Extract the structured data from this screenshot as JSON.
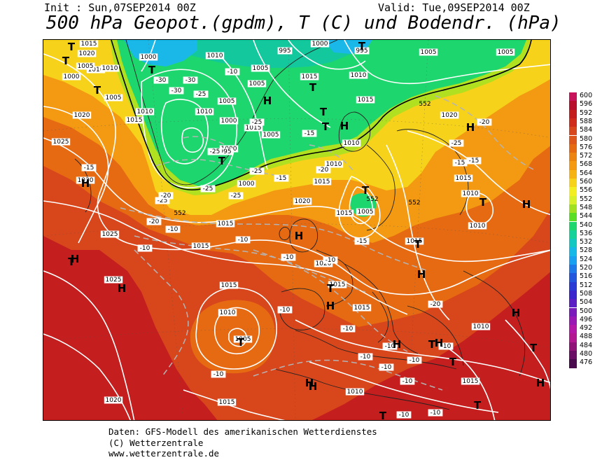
{
  "header": {
    "init": "Init : Sun,07SEP2014 00Z",
    "valid": "Valid: Tue,09SEP2014 00Z",
    "title": "500 hPa Geopot.(gpdm), T (C) und Bodendr. (hPa)"
  },
  "colors": {
    "map_outer": "#c41e1e",
    "map_red": "#d8461c",
    "map_orange": "#e66a12",
    "map_lightorange": "#f39a12",
    "map_yellow": "#f6d21a",
    "map_lime": "#b0e020",
    "map_green": "#1ed66e",
    "map_teal": "#12c89c",
    "map_cyan": "#19b8e8"
  },
  "scale": {
    "labels": [
      "600",
      "596",
      "592",
      "588",
      "584",
      "580",
      "576",
      "572",
      "568",
      "564",
      "560",
      "556",
      "552",
      "548",
      "544",
      "540",
      "536",
      "532",
      "528",
      "524",
      "520",
      "516",
      "512",
      "508",
      "504",
      "500",
      "496",
      "492",
      "488",
      "484",
      "480",
      "476"
    ],
    "colors": [
      "#c8135a",
      "#b8102c",
      "#c41e1e",
      "#d02c1c",
      "#d8461c",
      "#df561a",
      "#e66a12",
      "#ec8412",
      "#f39a12",
      "#f6b414",
      "#f6d21a",
      "#f2ee22",
      "#d8f02a",
      "#a0e020",
      "#5ade24",
      "#1ed66e",
      "#14d29a",
      "#12c8c0",
      "#16b8e8",
      "#1aa0f0",
      "#1e7ae8",
      "#2256dc",
      "#2a3ad4",
      "#3a26cc",
      "#5a1ec4",
      "#7a1cbc",
      "#9a18b4",
      "#b418a6",
      "#b41890",
      "#901478",
      "#6a0e66",
      "#4a0a4e"
    ]
  },
  "map": {
    "contour_labels": [
      {
        "t": "1015"
      },
      {
        "t": "1010"
      },
      {
        "t": "1000"
      },
      {
        "t": "995"
      },
      {
        "t": "1000"
      },
      {
        "t": "995"
      },
      {
        "t": "1005"
      },
      {
        "t": "1005"
      },
      {
        "t": "1010"
      },
      {
        "t": "1005"
      },
      {
        "t": "1005"
      },
      {
        "t": "1015"
      },
      {
        "t": "1010"
      },
      {
        "t": "1005"
      },
      {
        "t": "1000"
      },
      {
        "t": "1000"
      },
      {
        "t": "1005"
      },
      {
        "t": "1010"
      },
      {
        "t": "1015"
      },
      {
        "t": "1020"
      },
      {
        "t": "1025"
      },
      {
        "t": "1030"
      },
      {
        "t": "995"
      },
      {
        "t": "1000"
      },
      {
        "t": "1000"
      },
      {
        "t": "1005"
      },
      {
        "t": "1010"
      },
      {
        "t": "1015"
      },
      {
        "t": "1010"
      },
      {
        "t": "1015"
      },
      {
        "t": "1020"
      },
      {
        "t": "1020"
      },
      {
        "t": "1020"
      },
      {
        "t": "1015"
      },
      {
        "t": "1010"
      },
      {
        "t": "1010"
      },
      {
        "t": "1015"
      },
      {
        "t": "1025"
      },
      {
        "t": "1025"
      },
      {
        "t": "1020"
      },
      {
        "t": "1015"
      },
      {
        "t": "1015"
      },
      {
        "t": "1015"
      },
      {
        "t": "1010"
      },
      {
        "t": "1005"
      },
      {
        "t": "1015"
      },
      {
        "t": "1010"
      },
      {
        "t": "1015"
      },
      {
        "t": "1015"
      },
      {
        "t": "1010"
      },
      {
        "t": "1015"
      },
      {
        "t": "1010"
      },
      {
        "t": "1020"
      },
      {
        "t": "1015"
      },
      {
        "t": "1005"
      },
      {
        "t": "1010"
      },
      {
        "t": "1005"
      },
      {
        "t": "1015"
      }
    ],
    "temp_labels": [
      {
        "t": "-30"
      },
      {
        "t": "-30"
      },
      {
        "t": "-25"
      },
      {
        "t": "-25"
      },
      {
        "t": "-25"
      },
      {
        "t": "-25"
      },
      {
        "t": "-25"
      },
      {
        "t": "-25"
      },
      {
        "t": "-20"
      },
      {
        "t": "-20"
      },
      {
        "t": "-20"
      },
      {
        "t": "-20"
      },
      {
        "t": "-15"
      },
      {
        "t": "-15"
      },
      {
        "t": "-15"
      },
      {
        "t": "-15"
      },
      {
        "t": "-15"
      },
      {
        "t": "-15"
      },
      {
        "t": "-10"
      },
      {
        "t": "-10"
      },
      {
        "t": "-10"
      },
      {
        "t": "-10"
      },
      {
        "t": "-10"
      },
      {
        "t": "-10"
      },
      {
        "t": "-10"
      },
      {
        "t": "-10"
      },
      {
        "t": "-10"
      },
      {
        "t": "-10"
      },
      {
        "t": "-10"
      },
      {
        "t": "-10"
      },
      {
        "t": "-10"
      },
      {
        "t": "-10"
      },
      {
        "t": "-10"
      },
      {
        "t": "-10"
      },
      {
        "t": "-10"
      },
      {
        "t": "-25"
      },
      {
        "t": "-25"
      },
      {
        "t": "-20"
      },
      {
        "t": "-30"
      }
    ],
    "gpdm_labels": [
      {
        "t": "552"
      },
      {
        "t": "552"
      },
      {
        "t": "552"
      },
      {
        "t": "552"
      }
    ],
    "pressure_centers": [
      {
        "t": "T"
      },
      {
        "t": "T"
      },
      {
        "t": "T"
      },
      {
        "t": "T"
      },
      {
        "t": "T"
      },
      {
        "t": "T"
      },
      {
        "t": "T"
      },
      {
        "t": "T"
      },
      {
        "t": "T"
      },
      {
        "t": "T"
      },
      {
        "t": "T"
      },
      {
        "t": "T"
      },
      {
        "t": "T"
      },
      {
        "t": "T"
      },
      {
        "t": "T"
      },
      {
        "t": "T"
      },
      {
        "t": "T"
      },
      {
        "t": "T"
      },
      {
        "t": "T"
      },
      {
        "t": "T"
      },
      {
        "t": "H"
      },
      {
        "t": "H"
      },
      {
        "t": "H"
      },
      {
        "t": "H"
      },
      {
        "t": "H"
      },
      {
        "t": "H"
      },
      {
        "t": "H"
      },
      {
        "t": "H"
      },
      {
        "t": "H"
      },
      {
        "t": "H"
      },
      {
        "t": "H"
      },
      {
        "t": "H"
      },
      {
        "t": "H"
      },
      {
        "t": "H"
      },
      {
        "t": "H"
      },
      {
        "t": "H"
      }
    ]
  },
  "footer": {
    "line1": "Daten: GFS-Modell des amerikanischen Wetterdienstes",
    "line2": "(C) Wetterzentrale",
    "line3": "www.wetterzentrale.de"
  }
}
